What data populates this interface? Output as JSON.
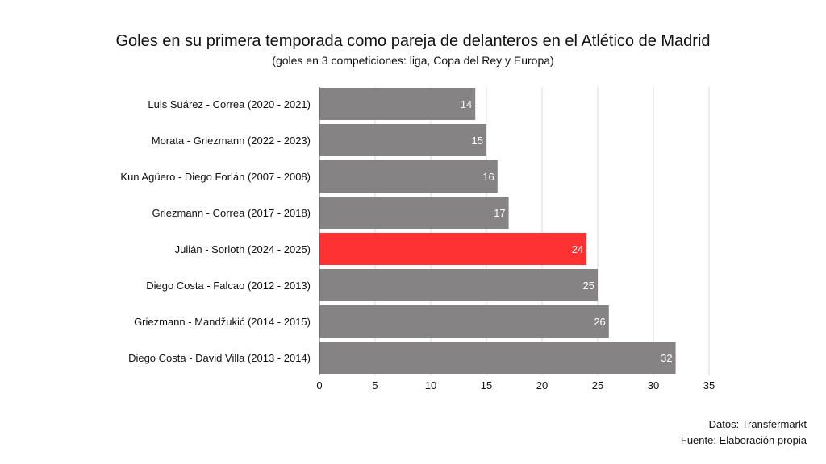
{
  "chart_data": {
    "type": "bar",
    "orientation": "horizontal",
    "title": "Goles en su primera temporada como pareja de delanteros en el Atlético de Madrid",
    "subtitle": "(goles en 3 competiciones: liga, Copa del Rey y Europa)",
    "categories": [
      "Luis Suárez - Correa (2020 - 2021)",
      "Morata - Griezmann (2022 - 2023)",
      "Kun Agüero - Diego Forlán (2007 - 2008)",
      "Griezmann - Correa (2017 - 2018)",
      "Julián - Sorloth (2024 - 2025)",
      "Diego Costa - Falcao (2012 - 2013)",
      "Griezmann - Mandžukić (2014 - 2015)",
      "Diego Costa - David Villa (2013 - 2014)"
    ],
    "values": [
      14,
      15,
      16,
      17,
      24,
      25,
      26,
      32
    ],
    "highlight_index": 4,
    "colors": {
      "default": "#858383",
      "highlight": "#fe3233",
      "grid": "#d9d9d9",
      "label": "#ffffff"
    },
    "xlim": [
      0,
      35
    ],
    "xticks": [
      0,
      5,
      10,
      15,
      20,
      25,
      30,
      35
    ],
    "grid": true
  },
  "footer": {
    "datos": "Datos: Transfermarkt",
    "fuente": "Fuente: Elaboración propia"
  }
}
